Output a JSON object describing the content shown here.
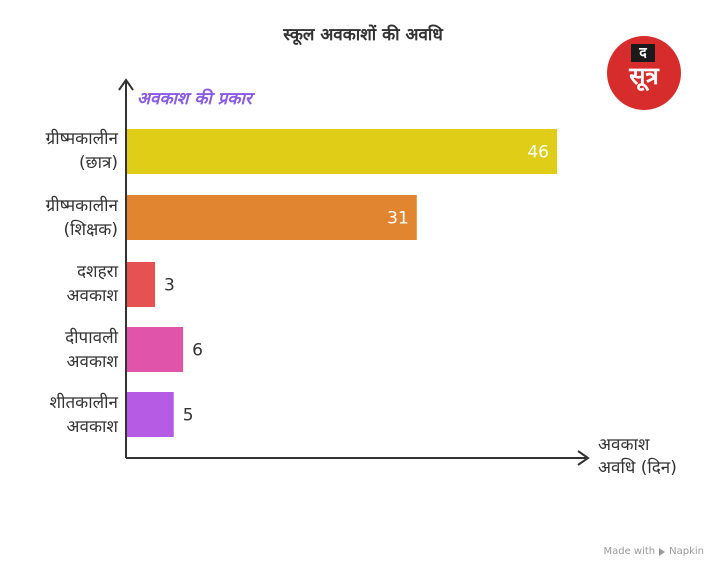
{
  "chart_data": {
    "type": "bar",
    "orientation": "horizontal",
    "title": "स्कूल अवकाशों की अवधि",
    "ylabel": "अवकाश की प्रकार",
    "xlabel": [
      "अवकाश",
      "अवधि (दिन)"
    ],
    "categories": [
      [
        "ग्रीष्मकालीन",
        "(छात्र)"
      ],
      [
        "ग्रीष्मकालीन",
        "(शिक्षक)"
      ],
      [
        "दशहरा",
        "अवकाश"
      ],
      [
        "दीपावली",
        "अवकाश"
      ],
      [
        "शीतकालीन",
        "अवकाश"
      ]
    ],
    "values": [
      46,
      31,
      3,
      6,
      5
    ],
    "colors": [
      "#e0cd17",
      "#e28530",
      "#e65151",
      "#e055a9",
      "#b65be3"
    ],
    "label_colors": [
      "#ffffff",
      "#ffffff",
      "#333333",
      "#333333",
      "#333333"
    ],
    "xlim": [
      0,
      46
    ],
    "grid": false
  },
  "logo": {
    "top": "द",
    "main": "सूत्र"
  },
  "footer": {
    "made_with": "Made with",
    "brand": "Napkin"
  }
}
